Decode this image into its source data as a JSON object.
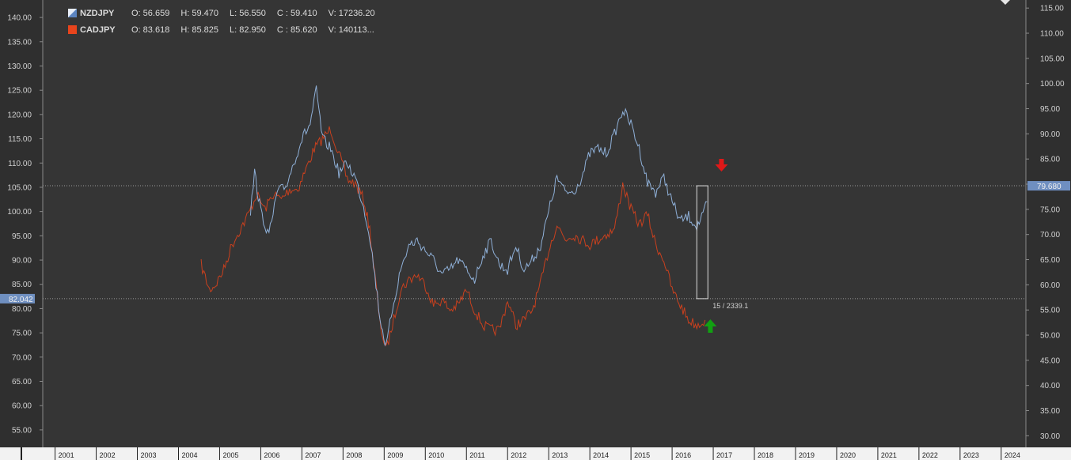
{
  "chart_data": {
    "type": "line",
    "title": "",
    "grid": false,
    "legend_placement": "top-left",
    "x_ticks": [
      "2001",
      "2002",
      "2003",
      "2004",
      "2005",
      "2006",
      "2007",
      "2008",
      "2009",
      "2010",
      "2011",
      "2012",
      "2013",
      "2014",
      "2015",
      "2016",
      "2017",
      "2018",
      "2019",
      "2020",
      "2021",
      "2022",
      "2023",
      "2024"
    ],
    "xlim": [
      2000.7,
      2024.6
    ],
    "left_axis": {
      "ticks": [
        "140.00",
        "135.00",
        "130.00",
        "125.00",
        "120.00",
        "115.00",
        "110.00",
        "105.00",
        "100.00",
        "95.00",
        "90.00",
        "85.00",
        "80.00",
        "75.00",
        "70.00",
        "65.00",
        "60.00",
        "55.00"
      ],
      "ylim": [
        51.4,
        143.6
      ],
      "price_marker": "82.042"
    },
    "right_axis": {
      "ticks": [
        "115.00",
        "110.00",
        "105.00",
        "100.00",
        "95.00",
        "90.00",
        "85.00",
        "80.00",
        "75.00",
        "70.00",
        "65.00",
        "60.00",
        "55.00",
        "50.00",
        "45.00",
        "40.00",
        "35.00",
        "30.00"
      ],
      "ylim": [
        27.7,
        116.6
      ],
      "price_marker": "79.680"
    },
    "series": [
      {
        "name": "NZDJPY",
        "color": "#8fb0d8",
        "axis": "left",
        "ohlc": {
          "open": "O: 56.659",
          "high": "H: 59.470",
          "low": "L: 56.550",
          "close": "C : 59.410",
          "volume": "V: 17236.20"
        },
        "points": [
          [
            2005.75,
            100
          ],
          [
            2005.85,
            108
          ],
          [
            2006.0,
            100
          ],
          [
            2006.2,
            95
          ],
          [
            2006.4,
            104
          ],
          [
            2006.6,
            105
          ],
          [
            2006.8,
            110
          ],
          [
            2007.0,
            115
          ],
          [
            2007.2,
            118
          ],
          [
            2007.35,
            125
          ],
          [
            2007.5,
            115
          ],
          [
            2007.7,
            113
          ],
          [
            2007.9,
            108
          ],
          [
            2008.1,
            110
          ],
          [
            2008.3,
            107
          ],
          [
            2008.5,
            101
          ],
          [
            2008.65,
            95
          ],
          [
            2008.8,
            85
          ],
          [
            2008.9,
            78
          ],
          [
            2009.05,
            72
          ],
          [
            2009.2,
            80
          ],
          [
            2009.4,
            88
          ],
          [
            2009.6,
            93
          ],
          [
            2009.8,
            94
          ],
          [
            2010.0,
            92
          ],
          [
            2010.2,
            90
          ],
          [
            2010.4,
            87
          ],
          [
            2010.6,
            88
          ],
          [
            2010.8,
            90
          ],
          [
            2011.0,
            88
          ],
          [
            2011.2,
            86
          ],
          [
            2011.4,
            91
          ],
          [
            2011.6,
            94
          ],
          [
            2011.8,
            89
          ],
          [
            2012.0,
            88
          ],
          [
            2012.2,
            93
          ],
          [
            2012.4,
            88
          ],
          [
            2012.6,
            90
          ],
          [
            2012.8,
            93
          ],
          [
            2013.0,
            100
          ],
          [
            2013.2,
            107
          ],
          [
            2013.4,
            104
          ],
          [
            2013.6,
            104
          ],
          [
            2013.8,
            107
          ],
          [
            2014.0,
            112
          ],
          [
            2014.2,
            113
          ],
          [
            2014.4,
            112
          ],
          [
            2014.6,
            116
          ],
          [
            2014.8,
            121
          ],
          [
            2015.0,
            118
          ],
          [
            2015.2,
            113
          ],
          [
            2015.4,
            106
          ],
          [
            2015.6,
            104
          ],
          [
            2015.8,
            107
          ],
          [
            2016.0,
            102
          ],
          [
            2016.2,
            98
          ],
          [
            2016.4,
            99
          ],
          [
            2016.6,
            97
          ],
          [
            2016.75,
            99
          ],
          [
            2016.85,
            102
          ]
        ]
      },
      {
        "name": "CADJPY",
        "color": "#c8401e",
        "axis": "right",
        "ohlc": {
          "open": "O: 83.618",
          "high": "H: 85.825",
          "low": "L: 82.950",
          "close": "C : 85.620",
          "volume": "V: 140113..."
        },
        "points": [
          [
            2004.55,
            64
          ],
          [
            2004.75,
            59
          ],
          [
            2004.9,
            60
          ],
          [
            2005.1,
            63
          ],
          [
            2005.3,
            68
          ],
          [
            2005.5,
            71
          ],
          [
            2005.7,
            74
          ],
          [
            2005.9,
            78
          ],
          [
            2006.1,
            75
          ],
          [
            2006.3,
            78
          ],
          [
            2006.5,
            77
          ],
          [
            2006.7,
            79
          ],
          [
            2006.9,
            79
          ],
          [
            2007.1,
            83
          ],
          [
            2007.3,
            87
          ],
          [
            2007.5,
            89
          ],
          [
            2007.7,
            91
          ],
          [
            2007.9,
            86
          ],
          [
            2008.1,
            81
          ],
          [
            2008.3,
            80
          ],
          [
            2008.5,
            77
          ],
          [
            2008.65,
            71
          ],
          [
            2008.8,
            60
          ],
          [
            2008.9,
            52
          ],
          [
            2009.05,
            47
          ],
          [
            2009.2,
            52
          ],
          [
            2009.4,
            59
          ],
          [
            2009.6,
            61
          ],
          [
            2009.8,
            62
          ],
          [
            2010.0,
            60
          ],
          [
            2010.2,
            56
          ],
          [
            2010.4,
            57
          ],
          [
            2010.6,
            55
          ],
          [
            2010.8,
            56
          ],
          [
            2011.0,
            59
          ],
          [
            2011.2,
            55
          ],
          [
            2011.4,
            52
          ],
          [
            2011.6,
            51
          ],
          [
            2011.8,
            51
          ],
          [
            2012.0,
            57
          ],
          [
            2012.2,
            52
          ],
          [
            2012.4,
            53
          ],
          [
            2012.6,
            55
          ],
          [
            2012.8,
            60
          ],
          [
            2013.0,
            67
          ],
          [
            2013.2,
            72
          ],
          [
            2013.4,
            69
          ],
          [
            2013.6,
            70
          ],
          [
            2013.8,
            69
          ],
          [
            2014.0,
            68
          ],
          [
            2014.2,
            69
          ],
          [
            2014.4,
            70
          ],
          [
            2014.6,
            71
          ],
          [
            2014.8,
            80
          ],
          [
            2015.0,
            75
          ],
          [
            2015.2,
            72
          ],
          [
            2015.4,
            74
          ],
          [
            2015.6,
            68
          ],
          [
            2015.8,
            65
          ],
          [
            2016.0,
            59
          ],
          [
            2016.2,
            56
          ],
          [
            2016.4,
            53
          ],
          [
            2016.6,
            52
          ],
          [
            2016.8,
            53
          ]
        ]
      }
    ],
    "annotations": {
      "range_label": "15 / 2339.1",
      "sell_arrow_color": "#e01818",
      "buy_arrow_color": "#12a012"
    }
  }
}
